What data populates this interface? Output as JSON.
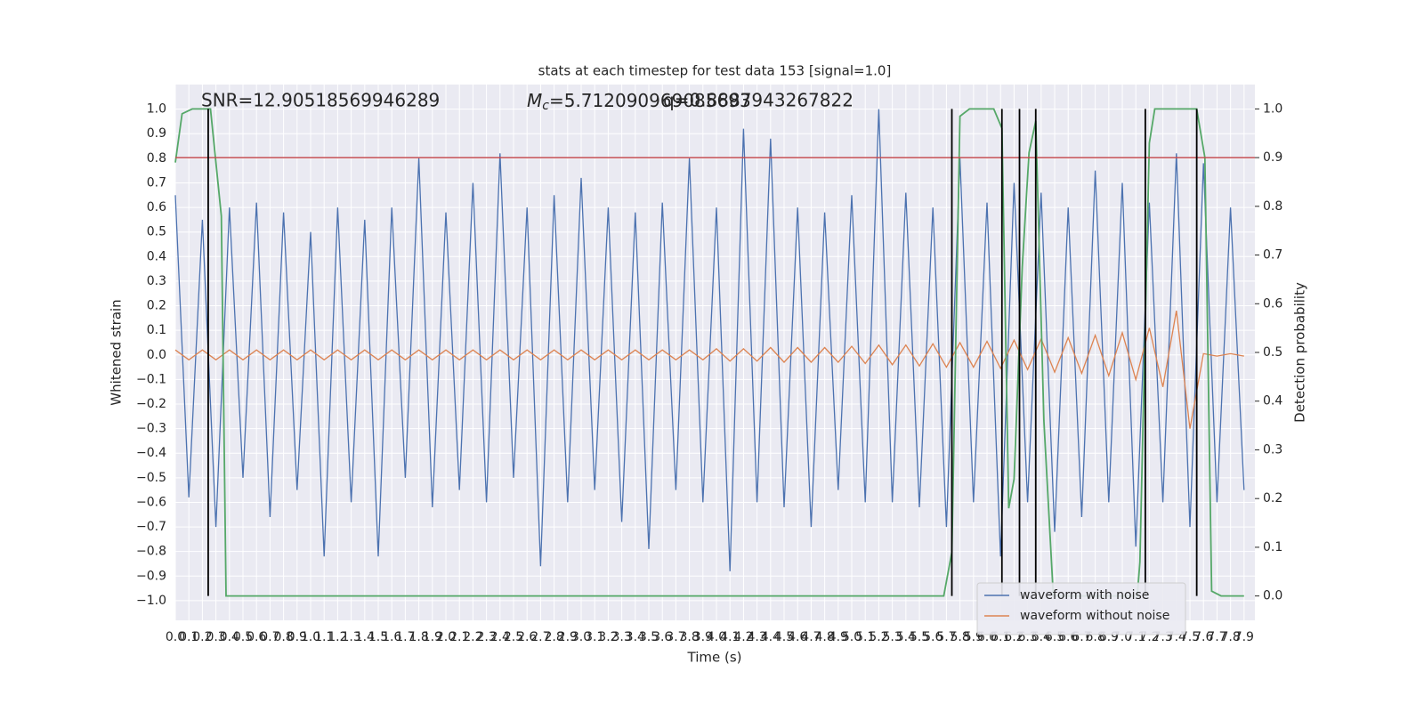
{
  "chart_data": {
    "type": "line",
    "title": "stats at each timestep for test data 153 [signal=1.0]",
    "xlabel": "Time (s)",
    "ylabel": "Whitened strain",
    "y2label": "Detection probability",
    "annotations": [
      {
        "text": "SNR=12.90518569946289"
      },
      {
        "symbol": "M",
        "subscript": "c",
        "text": "=5.712090969085693"
      },
      {
        "text": "q=0.8887943267822"
      }
    ],
    "x": [
      0,
      0.1,
      0.2,
      0.3,
      0.4,
      0.5,
      0.6,
      0.7,
      0.8,
      0.9,
      1,
      1.1,
      1.2,
      1.3,
      1.4,
      1.5,
      1.6,
      1.7,
      1.8,
      1.9,
      2,
      2.1,
      2.2,
      2.3,
      2.4,
      2.5,
      2.6,
      2.7,
      2.8,
      2.9,
      3,
      3.1,
      3.2,
      3.3,
      3.4,
      3.5,
      3.6,
      3.7,
      3.8,
      3.9,
      4,
      4.1,
      4.2,
      4.3,
      4.4,
      4.5,
      4.6,
      4.7,
      4.8,
      4.9,
      5,
      5.1,
      5.2,
      5.3,
      5.4,
      5.5,
      5.6,
      5.7,
      5.8,
      5.9,
      6,
      6.1,
      6.2,
      6.3,
      6.4,
      6.5,
      6.6,
      6.7,
      6.8,
      6.9,
      7,
      7.1,
      7.2,
      7.3,
      7.4,
      7.5,
      7.6,
      7.7,
      7.8,
      7.9
    ],
    "series": [
      {
        "name": "waveform with noise",
        "color": "#4c72b0",
        "values": [
          0.65,
          -0.58,
          0.55,
          -0.7,
          0.6,
          -0.5,
          0.62,
          -0.66,
          0.58,
          -0.55,
          0.5,
          -0.82,
          0.6,
          -0.6,
          0.55,
          -0.82,
          0.6,
          -0.5,
          0.8,
          -0.62,
          0.58,
          -0.55,
          0.7,
          -0.6,
          0.82,
          -0.5,
          0.6,
          -0.86,
          0.65,
          -0.6,
          0.72,
          -0.55,
          0.6,
          -0.68,
          0.58,
          -0.79,
          0.62,
          -0.55,
          0.8,
          -0.6,
          0.6,
          -0.88,
          0.92,
          -0.6,
          0.88,
          -0.62,
          0.6,
          -0.7,
          0.58,
          -0.55,
          0.65,
          -0.6,
          1.0,
          -0.6,
          0.66,
          -0.62,
          0.6,
          -0.7,
          0.8,
          -0.6,
          0.62,
          -0.82,
          0.7,
          -0.6,
          0.66,
          -0.72,
          0.6,
          -0.66,
          0.75,
          -0.6,
          0.7,
          -0.78,
          0.62,
          -0.6,
          0.82,
          -0.7,
          0.78,
          -0.6,
          0.6,
          -0.55
        ]
      },
      {
        "name": "waveform without noise",
        "color": "#dd8452",
        "values": [
          0.02,
          -0.02,
          0.02,
          -0.02,
          0.02,
          -0.02,
          0.02,
          -0.02,
          0.02,
          -0.02,
          0.02,
          -0.02,
          0.02,
          -0.02,
          0.02,
          -0.02,
          0.02,
          -0.02,
          0.02,
          -0.02,
          0.02,
          -0.02,
          0.02,
          -0.02,
          0.02,
          -0.02,
          0.02,
          -0.02,
          0.02,
          -0.02,
          0.02,
          -0.02,
          0.02,
          -0.02,
          0.02,
          -0.02,
          0.02,
          -0.02,
          0.02,
          -0.02,
          0.025,
          -0.025,
          0.025,
          -0.025,
          0.03,
          -0.03,
          0.03,
          -0.03,
          0.03,
          -0.03,
          0.035,
          -0.035,
          0.04,
          -0.04,
          0.04,
          -0.045,
          0.045,
          -0.05,
          0.05,
          -0.05,
          0.055,
          -0.055,
          0.06,
          -0.06,
          0.065,
          -0.07,
          0.07,
          -0.075,
          0.08,
          -0.085,
          0.09,
          -0.1,
          0.11,
          -0.13,
          0.18,
          -0.3,
          0.005,
          -0.005,
          0.005,
          -0.005
        ]
      },
      {
        "color": "#55a868",
        "axis": "y2",
        "x": [
          0,
          0.05,
          0.125,
          0.26,
          0.3,
          0.34,
          0.375,
          5.68,
          5.74,
          5.8,
          5.87,
          6.05,
          6.11,
          6.16,
          6.2,
          6.26,
          6.31,
          6.36,
          6.42,
          6.49,
          7.11,
          7.13,
          7.2,
          7.24,
          7.55,
          7.61,
          7.66,
          7.73,
          7.9
        ],
        "values": [
          0.89,
          0.99,
          1,
          1,
          0.89,
          0.78,
          0,
          0,
          0.09,
          0.985,
          1,
          1,
          0.96,
          0.18,
          0.24,
          0.675,
          0.91,
          0.975,
          0.36,
          0,
          0,
          0.07,
          0.93,
          1,
          1,
          0.9,
          0.01,
          0,
          0
        ]
      }
    ],
    "threshold": 0.9,
    "threshold_color": "#c44e52",
    "detections": [
      0.243,
      5.74,
      6.11,
      6.24,
      6.36,
      7.17,
      7.55
    ],
    "detection_color": "#000000",
    "xlim": [
      0,
      7.98
    ],
    "ylim": [
      -1.08,
      1.1
    ],
    "y2lim": [
      -0.05,
      1.05
    ],
    "xticks": [
      {
        "value": 0,
        "label": "0.0"
      },
      0.1,
      0.2,
      0.3,
      0.4,
      0.5,
      0.6,
      0.7,
      0.8,
      0.9,
      {
        "value": 1,
        "label": "1.0"
      },
      1.1,
      1.2,
      1.3,
      1.4,
      1.5,
      1.6,
      1.7,
      1.8,
      1.9,
      {
        "value": 2,
        "label": "2.0"
      },
      2.1,
      2.2,
      2.3,
      2.4,
      2.5,
      2.6,
      2.7,
      2.8,
      2.9,
      {
        "value": 3,
        "label": "3.0"
      },
      3.1,
      3.2,
      3.3,
      3.4,
      3.5,
      3.6,
      3.7,
      3.8,
      3.9,
      {
        "value": 4,
        "label": "4.0"
      },
      4.1,
      4.2,
      4.3,
      4.4,
      4.5,
      4.6,
      4.7,
      4.8,
      4.9,
      {
        "value": 5,
        "label": "5.0"
      },
      5.1,
      5.2,
      5.3,
      5.4,
      5.5,
      5.6,
      5.7,
      5.8,
      5.9,
      {
        "value": 6,
        "label": "6.0"
      },
      6.1,
      6.2,
      6.3,
      6.4,
      6.5,
      6.6,
      6.7,
      6.8,
      6.9,
      {
        "value": 7,
        "label": "7.0"
      },
      7.1,
      7.2,
      7.3,
      7.4,
      7.5,
      7.6,
      7.7,
      7.8,
      7.9
    ],
    "yticks": [
      {
        "value": -1,
        "label": "−1.0"
      },
      {
        "value": -0.9,
        "label": "−0.9"
      },
      {
        "value": -0.8,
        "label": "−0.8"
      },
      {
        "value": -0.7,
        "label": "−0.7"
      },
      {
        "value": -0.6,
        "label": "−0.6"
      },
      {
        "value": -0.5,
        "label": "−0.5"
      },
      {
        "value": -0.4,
        "label": "−0.4"
      },
      {
        "value": -0.3,
        "label": "−0.3"
      },
      {
        "value": -0.2,
        "label": "−0.2"
      },
      {
        "value": -0.1,
        "label": "−0.1"
      },
      {
        "value": 0,
        "label": "0.0"
      },
      0.1,
      0.2,
      0.3,
      0.4,
      0.5,
      0.6,
      0.7,
      0.8,
      0.9,
      {
        "value": 1,
        "label": "1.0"
      }
    ],
    "y2ticks": [
      {
        "value": 0,
        "label": "0.0"
      },
      0.1,
      0.2,
      0.3,
      0.4,
      0.5,
      0.6,
      0.7,
      0.8,
      0.9,
      {
        "value": 1,
        "label": "1.0"
      }
    ],
    "grid": true,
    "legend": "lower right",
    "background": "#eaeaf2"
  }
}
